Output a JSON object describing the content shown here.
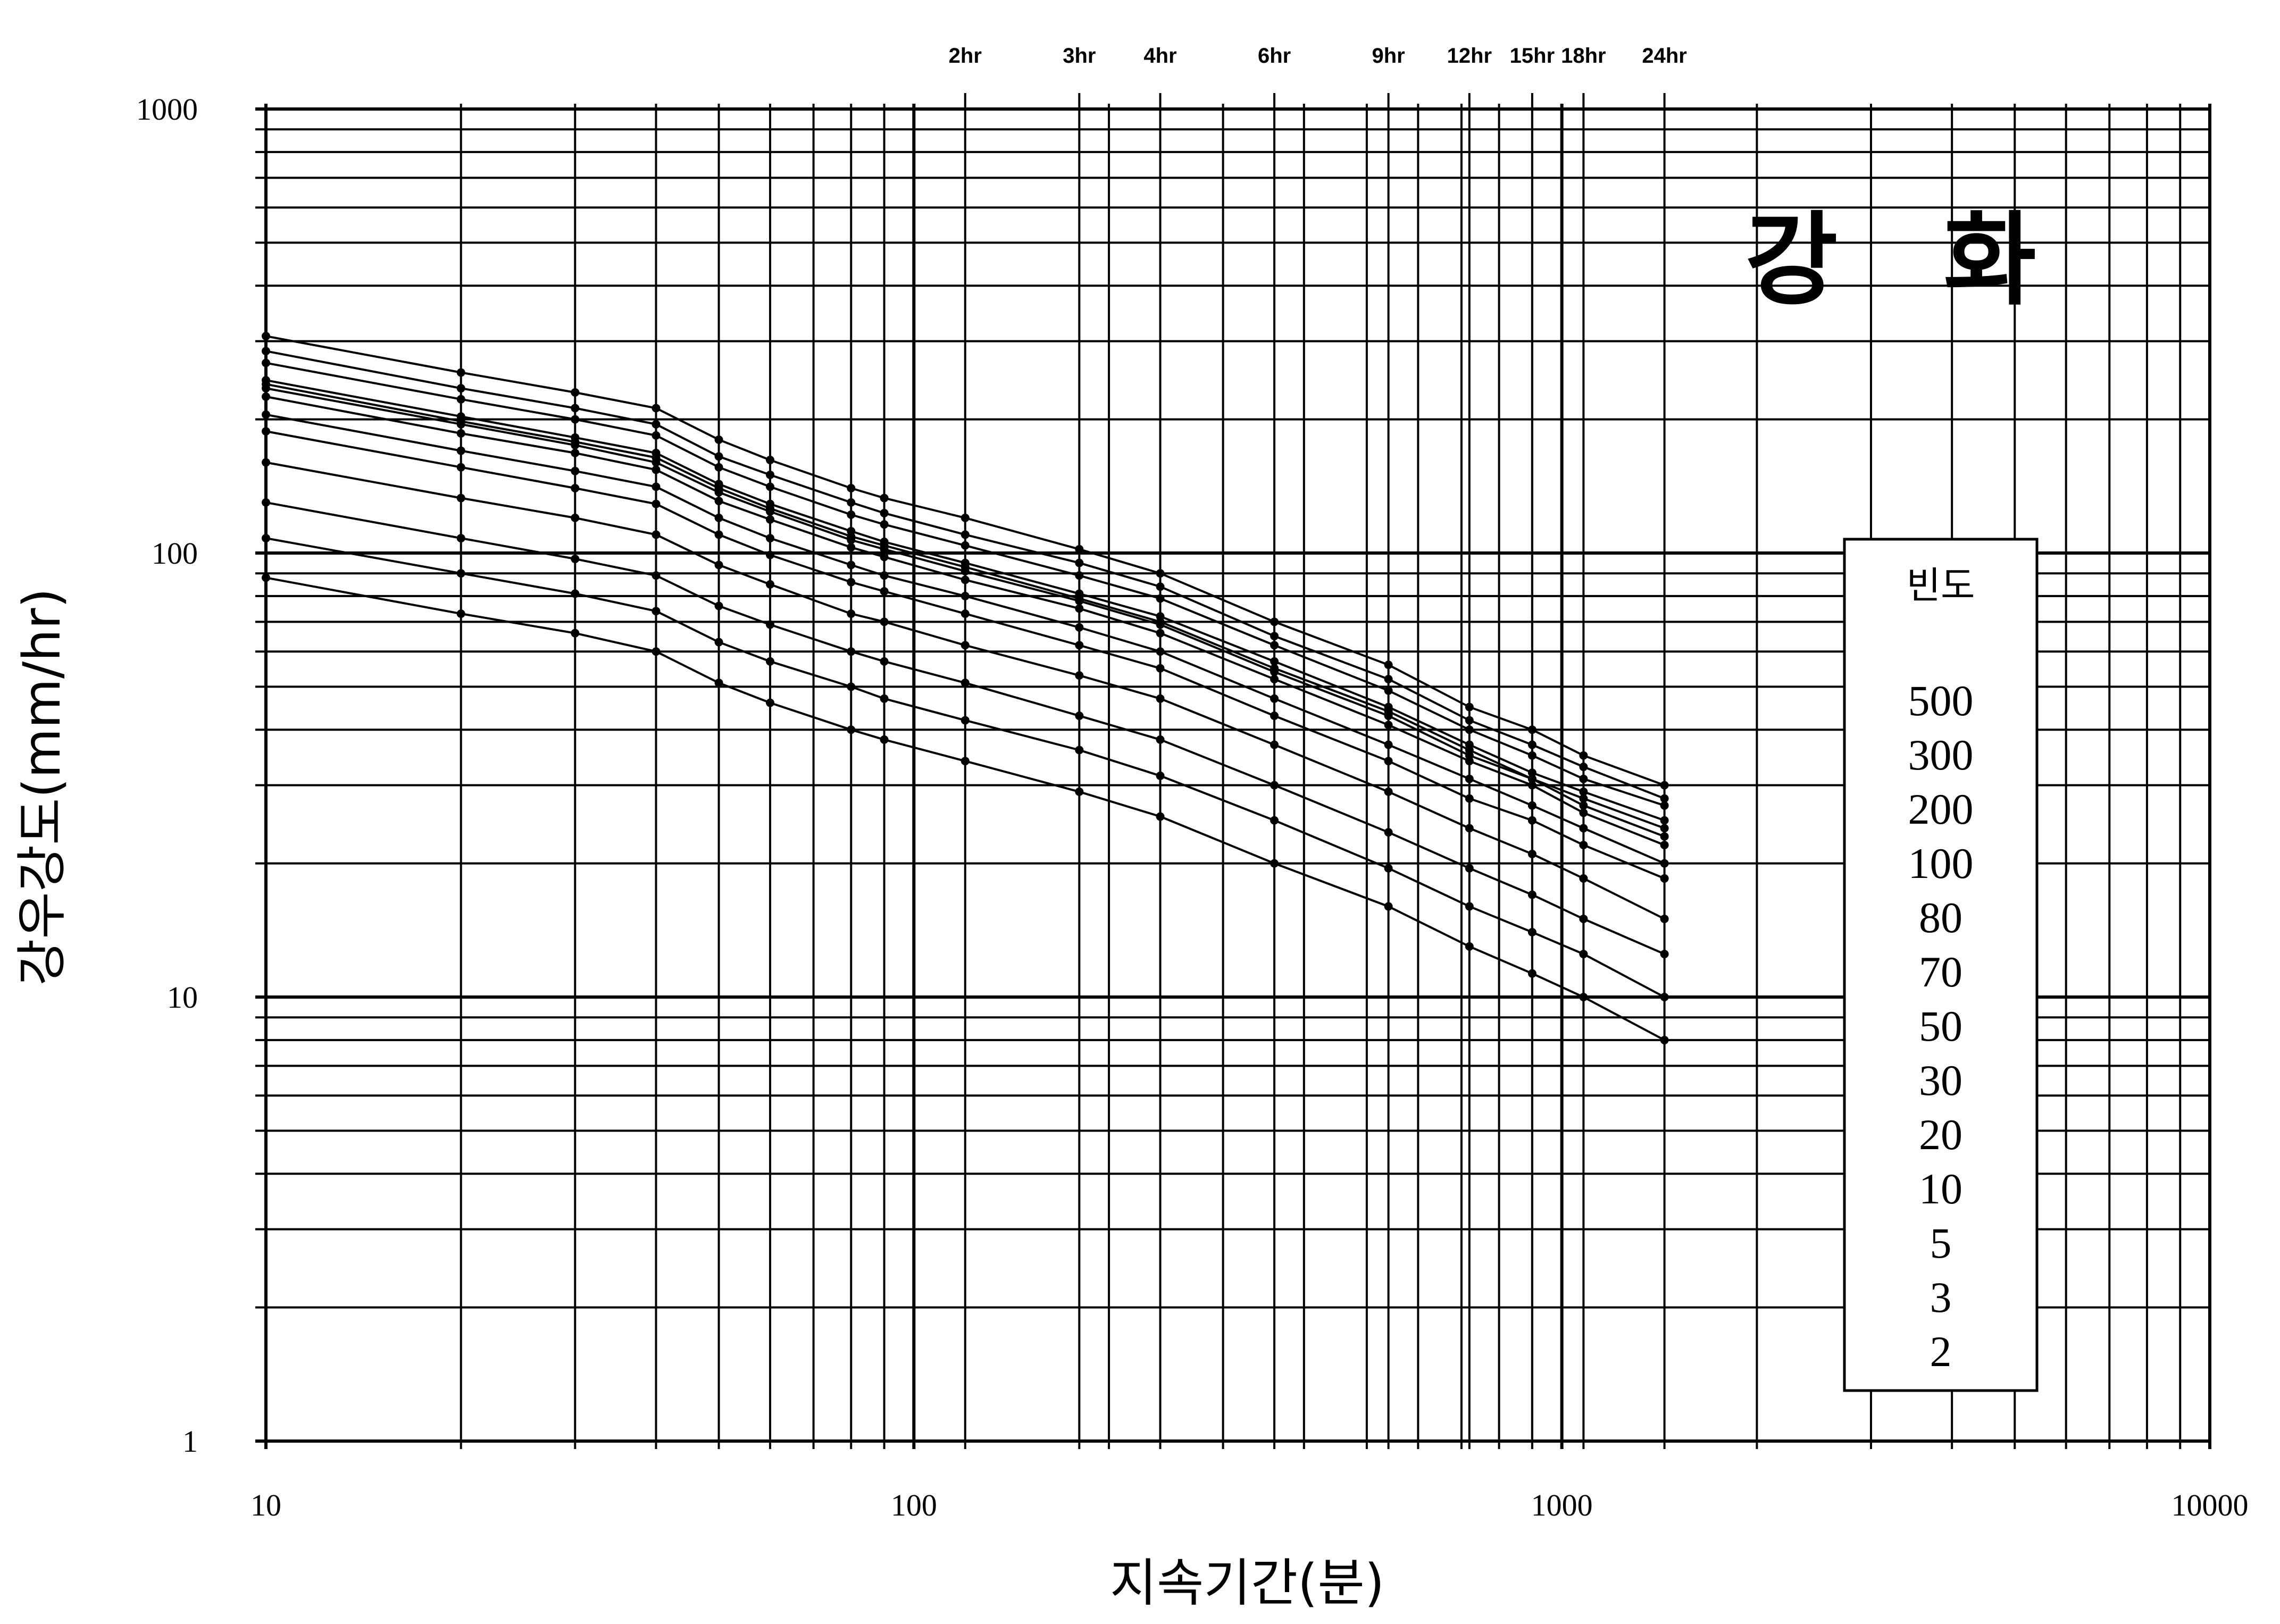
{
  "chart_data": {
    "type": "line",
    "title": "강   화",
    "xlabel": "지속기간(분)",
    "ylabel": "강우강도(mm/hr)",
    "xscale": "log",
    "yscale": "log",
    "xlim": [
      10,
      10000
    ],
    "ylim": [
      1,
      1000
    ],
    "grid": true,
    "x_tick_labels": [
      "10",
      "100",
      "1000",
      "10000"
    ],
    "y_tick_labels": [
      "1",
      "10",
      "100",
      "1000"
    ],
    "duration_labels": [
      {
        "label": "2hr",
        "x": 120
      },
      {
        "label": "3hr",
        "x": 180
      },
      {
        "label": "4hr",
        "x": 240
      },
      {
        "label": "6hr",
        "x": 360
      },
      {
        "label": "9hr",
        "x": 540
      },
      {
        "label": "12hr",
        "x": 720
      },
      {
        "label": "15hr",
        "x": 900
      },
      {
        "label": "18hr",
        "x": 1080
      },
      {
        "label": "24hr",
        "x": 1440
      }
    ],
    "legend": {
      "title": "빈도",
      "position": "right",
      "items": [
        "500",
        "300",
        "200",
        "100",
        "80",
        "70",
        "50",
        "30",
        "20",
        "10",
        "5",
        "3",
        "2"
      ]
    },
    "x": [
      10,
      20,
      30,
      40,
      50,
      60,
      80,
      90,
      120,
      180,
      240,
      360,
      540,
      720,
      900,
      1080,
      1440
    ],
    "series": [
      {
        "values": [
          308,
          255,
          230,
          212,
          180,
          162,
          140,
          133,
          120,
          102,
          90,
          70,
          56,
          45,
          40,
          35,
          30
        ]
      },
      {
        "values": [
          285,
          235,
          212,
          195,
          165,
          150,
          130,
          123,
          110,
          95,
          84,
          65,
          52,
          42,
          37,
          33,
          28
        ]
      },
      {
        "values": [
          268,
          222,
          200,
          184,
          156,
          141,
          122,
          116,
          104,
          89,
          79,
          62,
          49,
          40,
          35,
          31,
          27
        ]
      },
      {
        "values": [
          245,
          203,
          182,
          168,
          143,
          129,
          112,
          106,
          95,
          81,
          72,
          57,
          45,
          37,
          32,
          29,
          25
        ]
      },
      {
        "values": [
          240,
          198,
          178,
          164,
          140,
          126,
          109,
          104,
          93,
          79,
          70,
          55,
          44,
          36,
          31,
          28,
          24
        ]
      },
      {
        "values": [
          235,
          195,
          175,
          160,
          137,
          124,
          107,
          102,
          91,
          78,
          69,
          54,
          43,
          35,
          31,
          27,
          23
        ]
      },
      {
        "values": [
          225,
          186,
          168,
          154,
          131,
          119,
          103,
          98,
          87,
          75,
          66,
          52,
          41,
          34,
          30,
          26,
          22
        ]
      },
      {
        "values": [
          205,
          170,
          153,
          141,
          120,
          108,
          94,
          89,
          80,
          68,
          60,
          47,
          37,
          31,
          27,
          24,
          20
        ]
      },
      {
        "values": [
          188,
          156,
          140,
          129,
          110,
          99,
          86,
          82,
          73,
          62,
          55,
          43,
          34,
          28,
          25,
          22,
          18.5
        ]
      },
      {
        "values": [
          160,
          133,
          120,
          110,
          94,
          85,
          73,
          70,
          62,
          53,
          47,
          37,
          29,
          24,
          21,
          18.5,
          15
        ]
      },
      {
        "values": [
          130,
          108,
          97,
          89,
          76,
          69,
          60,
          57,
          51,
          43,
          38,
          30,
          23.5,
          19.5,
          17,
          15,
          12.5
        ]
      },
      {
        "values": [
          108,
          90,
          81,
          74,
          63,
          57,
          50,
          47,
          42,
          36,
          31.5,
          25,
          19.5,
          16,
          14,
          12.5,
          10
        ]
      },
      {
        "values": [
          88,
          73,
          66,
          60,
          51,
          46,
          40,
          38,
          34,
          29,
          25.5,
          20,
          16,
          13,
          11.3,
          10,
          8
        ]
      }
    ]
  }
}
